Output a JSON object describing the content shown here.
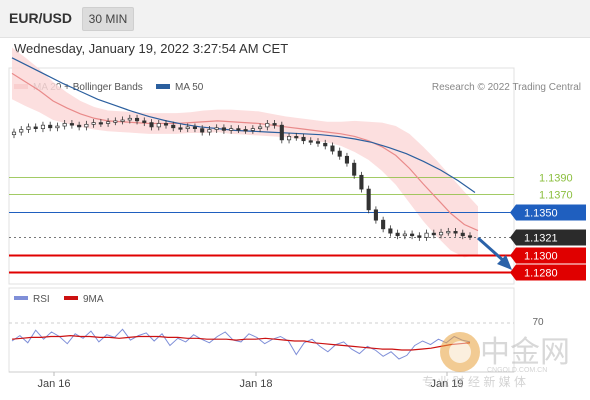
{
  "header": {
    "pair": "EUR/USD",
    "timeframe": "30 MIN"
  },
  "datetime": "Wednesday, January 19, 2022 3:27:54 AM CET",
  "legend": {
    "ma20": "MA 20 + Bollinger Bands",
    "ma50": "MA 50"
  },
  "credit": "Research © 2022 Trading Central",
  "levels": [
    {
      "label": "1.1390",
      "color": "#8cbf3f"
    },
    {
      "label": "1.1370",
      "color": "#8cbf3f"
    },
    {
      "label": "1.1350",
      "color": "#1f5fbf"
    },
    {
      "label": "1.1321",
      "color": "#2b2b2b"
    },
    {
      "label": "1.1300",
      "color": "#e00000"
    },
    {
      "label": "1.1280",
      "color": "#e00000"
    }
  ],
  "rsi_legend": {
    "rsi": "RSI",
    "ma": "9MA"
  },
  "rsi_level": "70",
  "x_labels": [
    "Jan 16",
    "Jan 18",
    "Jan 19"
  ],
  "watermark": {
    "name": "中金网",
    "url": "CNGOLD.COM.CN",
    "tagline": "专 业 财 经 新 媒 体"
  },
  "colors": {
    "ma20": "#e98a8a",
    "ma50": "#2b5f9e",
    "band": "#fbd9d9",
    "rsi": "#7f8fd8",
    "rsi_ma": "#cc1111",
    "arrow": "#2b62a8"
  },
  "chart_data": {
    "type": "candlestick",
    "price_levels": [
      1.139,
      1.137,
      1.135,
      1.1321,
      1.13,
      1.128
    ],
    "last_price": 1.1321,
    "close_series": [
      1.1442,
      1.1445,
      1.1448,
      1.1446,
      1.145,
      1.1447,
      1.1449,
      1.1452,
      1.145,
      1.1448,
      1.1451,
      1.1453,
      1.1452,
      1.1454,
      1.1455,
      1.1456,
      1.1458,
      1.1455,
      1.1453,
      1.1448,
      1.1452,
      1.145,
      1.1447,
      1.1446,
      1.1448,
      1.1446,
      1.1442,
      1.1445,
      1.1447,
      1.1444,
      1.1446,
      1.1445,
      1.1444,
      1.1446,
      1.1448,
      1.1452,
      1.145,
      1.1433,
      1.1437,
      1.1436,
      1.1432,
      1.1431,
      1.1429,
      1.1426,
      1.142,
      1.1414,
      1.1406,
      1.1392,
      1.1376,
      1.1352,
      1.134,
      1.133,
      1.1325,
      1.1322,
      1.1324,
      1.1322,
      1.132,
      1.1325,
      1.1323,
      1.1326,
      1.1327,
      1.1325,
      1.1322,
      1.1321
    ],
    "ma20": [
      1.151,
      1.15,
      1.149,
      1.1478,
      1.147,
      1.1463,
      1.1458,
      1.1455,
      1.1454,
      1.1453,
      1.1452,
      1.1452,
      1.1452,
      1.1453,
      1.1454,
      1.1455,
      1.1454,
      1.1453,
      1.1452,
      1.145,
      1.1448,
      1.1446,
      1.1444,
      1.1442,
      1.144,
      1.1437,
      1.1432,
      1.1425,
      1.1415,
      1.14,
      1.1382,
      1.1365,
      1.1348,
      1.1335,
      1.1328
    ],
    "ma50": [
      1.1528,
      1.1518,
      1.1508,
      1.1498,
      1.1489,
      1.148,
      1.1473,
      1.1466,
      1.146,
      1.1455,
      1.1451,
      1.1448,
      1.1446,
      1.1444,
      1.1443,
      1.1442,
      1.1441,
      1.144,
      1.1439,
      1.1437,
      1.1434,
      1.143,
      1.1424,
      1.1417,
      1.1408,
      1.1398,
      1.1386,
      1.1372
    ],
    "band_width": [
      0.003,
      0.0028,
      0.0025,
      0.0022,
      0.0018,
      0.0015,
      0.0013,
      0.0012,
      0.0012,
      0.0012,
      0.0012,
      0.0012,
      0.0012,
      0.0012,
      0.0013,
      0.0013,
      0.0014,
      0.0014,
      0.0014,
      0.0013,
      0.0012,
      0.0012,
      0.0012,
      0.0012,
      0.0014,
      0.0018,
      0.0022,
      0.0028,
      0.0034,
      0.004,
      0.0043,
      0.0044,
      0.0043,
      0.0038,
      0.0028
    ],
    "rsi": [
      50,
      56,
      48,
      62,
      52,
      60,
      55,
      47,
      58,
      53,
      61,
      49,
      57,
      54,
      63,
      51,
      56,
      59,
      50,
      58,
      45,
      53,
      49,
      57,
      52,
      48,
      55,
      60,
      51,
      49,
      58,
      54,
      47,
      52,
      55,
      50,
      35,
      48,
      52,
      44,
      38,
      46,
      49,
      41,
      36,
      44,
      40,
      33,
      38,
      30,
      34,
      45,
      50,
      46,
      52,
      48,
      55,
      51,
      49
    ],
    "rsi_ma": [
      52,
      53,
      54,
      54,
      55,
      55,
      56,
      55,
      55,
      54,
      54,
      53,
      54,
      55,
      55,
      55,
      54,
      54,
      53,
      53,
      52,
      52,
      52,
      51,
      52,
      52,
      53,
      52,
      51,
      50,
      50,
      48,
      47,
      46,
      45,
      44,
      43,
      42,
      41,
      41,
      40,
      40,
      41,
      42,
      44,
      46,
      47,
      48
    ],
    "rsi_level": 70,
    "x_ticks": [
      "Jan 16",
      "Jan 18",
      "Jan 19"
    ],
    "forecast": "down toward 1.1280"
  }
}
